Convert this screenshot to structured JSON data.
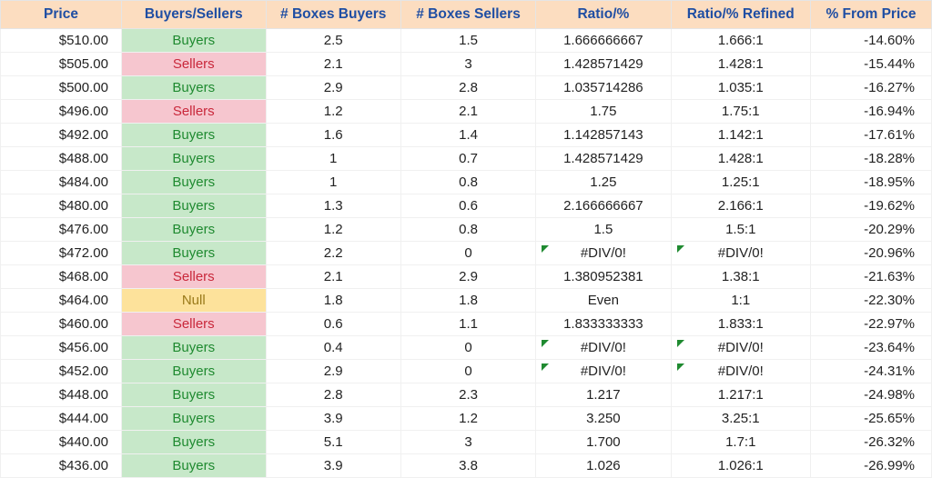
{
  "table": {
    "columns": [
      "Price",
      "Buyers/Sellers",
      "# Boxes Buyers",
      "# Boxes Sellers",
      "Ratio/%",
      "Ratio/% Refined",
      "% From Price"
    ],
    "header_bg": "#fcddc0",
    "header_text_color": "#1f4ea3",
    "status_styles": {
      "Buyers": {
        "bg": "#c7e8c9",
        "color": "#1f8a30"
      },
      "Sellers": {
        "bg": "#f6c6cf",
        "color": "#c9283b"
      },
      "Null": {
        "bg": "#fde29b",
        "color": "#9a7a1a"
      }
    },
    "error_flag_color": "#1f8a30",
    "rows": [
      {
        "price": "$510.00",
        "status": "Buyers",
        "boxes_buyers": "2.5",
        "boxes_sellers": "1.5",
        "ratio": "1.666666667",
        "ratio_refined": "1.666:1",
        "pct_from_price": "-14.60%",
        "err": false
      },
      {
        "price": "$505.00",
        "status": "Sellers",
        "boxes_buyers": "2.1",
        "boxes_sellers": "3",
        "ratio": "1.428571429",
        "ratio_refined": "1.428:1",
        "pct_from_price": "-15.44%",
        "err": false
      },
      {
        "price": "$500.00",
        "status": "Buyers",
        "boxes_buyers": "2.9",
        "boxes_sellers": "2.8",
        "ratio": "1.035714286",
        "ratio_refined": "1.035:1",
        "pct_from_price": "-16.27%",
        "err": false
      },
      {
        "price": "$496.00",
        "status": "Sellers",
        "boxes_buyers": "1.2",
        "boxes_sellers": "2.1",
        "ratio": "1.75",
        "ratio_refined": "1.75:1",
        "pct_from_price": "-16.94%",
        "err": false
      },
      {
        "price": "$492.00",
        "status": "Buyers",
        "boxes_buyers": "1.6",
        "boxes_sellers": "1.4",
        "ratio": "1.142857143",
        "ratio_refined": "1.142:1",
        "pct_from_price": "-17.61%",
        "err": false
      },
      {
        "price": "$488.00",
        "status": "Buyers",
        "boxes_buyers": "1",
        "boxes_sellers": "0.7",
        "ratio": "1.428571429",
        "ratio_refined": "1.428:1",
        "pct_from_price": "-18.28%",
        "err": false
      },
      {
        "price": "$484.00",
        "status": "Buyers",
        "boxes_buyers": "1",
        "boxes_sellers": "0.8",
        "ratio": "1.25",
        "ratio_refined": "1.25:1",
        "pct_from_price": "-18.95%",
        "err": false
      },
      {
        "price": "$480.00",
        "status": "Buyers",
        "boxes_buyers": "1.3",
        "boxes_sellers": "0.6",
        "ratio": "2.166666667",
        "ratio_refined": "2.166:1",
        "pct_from_price": "-19.62%",
        "err": false
      },
      {
        "price": "$476.00",
        "status": "Buyers",
        "boxes_buyers": "1.2",
        "boxes_sellers": "0.8",
        "ratio": "1.5",
        "ratio_refined": "1.5:1",
        "pct_from_price": "-20.29%",
        "err": false
      },
      {
        "price": "$472.00",
        "status": "Buyers",
        "boxes_buyers": "2.2",
        "boxes_sellers": "0",
        "ratio": "#DIV/0!",
        "ratio_refined": "#DIV/0!",
        "pct_from_price": "-20.96%",
        "err": true
      },
      {
        "price": "$468.00",
        "status": "Sellers",
        "boxes_buyers": "2.1",
        "boxes_sellers": "2.9",
        "ratio": "1.380952381",
        "ratio_refined": "1.38:1",
        "pct_from_price": "-21.63%",
        "err": false
      },
      {
        "price": "$464.00",
        "status": "Null",
        "boxes_buyers": "1.8",
        "boxes_sellers": "1.8",
        "ratio": "Even",
        "ratio_refined": "1:1",
        "pct_from_price": "-22.30%",
        "err": false
      },
      {
        "price": "$460.00",
        "status": "Sellers",
        "boxes_buyers": "0.6",
        "boxes_sellers": "1.1",
        "ratio": "1.833333333",
        "ratio_refined": "1.833:1",
        "pct_from_price": "-22.97%",
        "err": false
      },
      {
        "price": "$456.00",
        "status": "Buyers",
        "boxes_buyers": "0.4",
        "boxes_sellers": "0",
        "ratio": "#DIV/0!",
        "ratio_refined": "#DIV/0!",
        "pct_from_price": "-23.64%",
        "err": true
      },
      {
        "price": "$452.00",
        "status": "Buyers",
        "boxes_buyers": "2.9",
        "boxes_sellers": "0",
        "ratio": "#DIV/0!",
        "ratio_refined": "#DIV/0!",
        "pct_from_price": "-24.31%",
        "err": true
      },
      {
        "price": "$448.00",
        "status": "Buyers",
        "boxes_buyers": "2.8",
        "boxes_sellers": "2.3",
        "ratio": "1.217",
        "ratio_refined": "1.217:1",
        "pct_from_price": "-24.98%",
        "err": false
      },
      {
        "price": "$444.00",
        "status": "Buyers",
        "boxes_buyers": "3.9",
        "boxes_sellers": "1.2",
        "ratio": "3.250",
        "ratio_refined": "3.25:1",
        "pct_from_price": "-25.65%",
        "err": false
      },
      {
        "price": "$440.00",
        "status": "Buyers",
        "boxes_buyers": "5.1",
        "boxes_sellers": "3",
        "ratio": "1.700",
        "ratio_refined": "1.7:1",
        "pct_from_price": "-26.32%",
        "err": false
      },
      {
        "price": "$436.00",
        "status": "Buyers",
        "boxes_buyers": "3.9",
        "boxes_sellers": "3.8",
        "ratio": "1.026",
        "ratio_refined": "1.026:1",
        "pct_from_price": "-26.99%",
        "err": false
      }
    ]
  }
}
